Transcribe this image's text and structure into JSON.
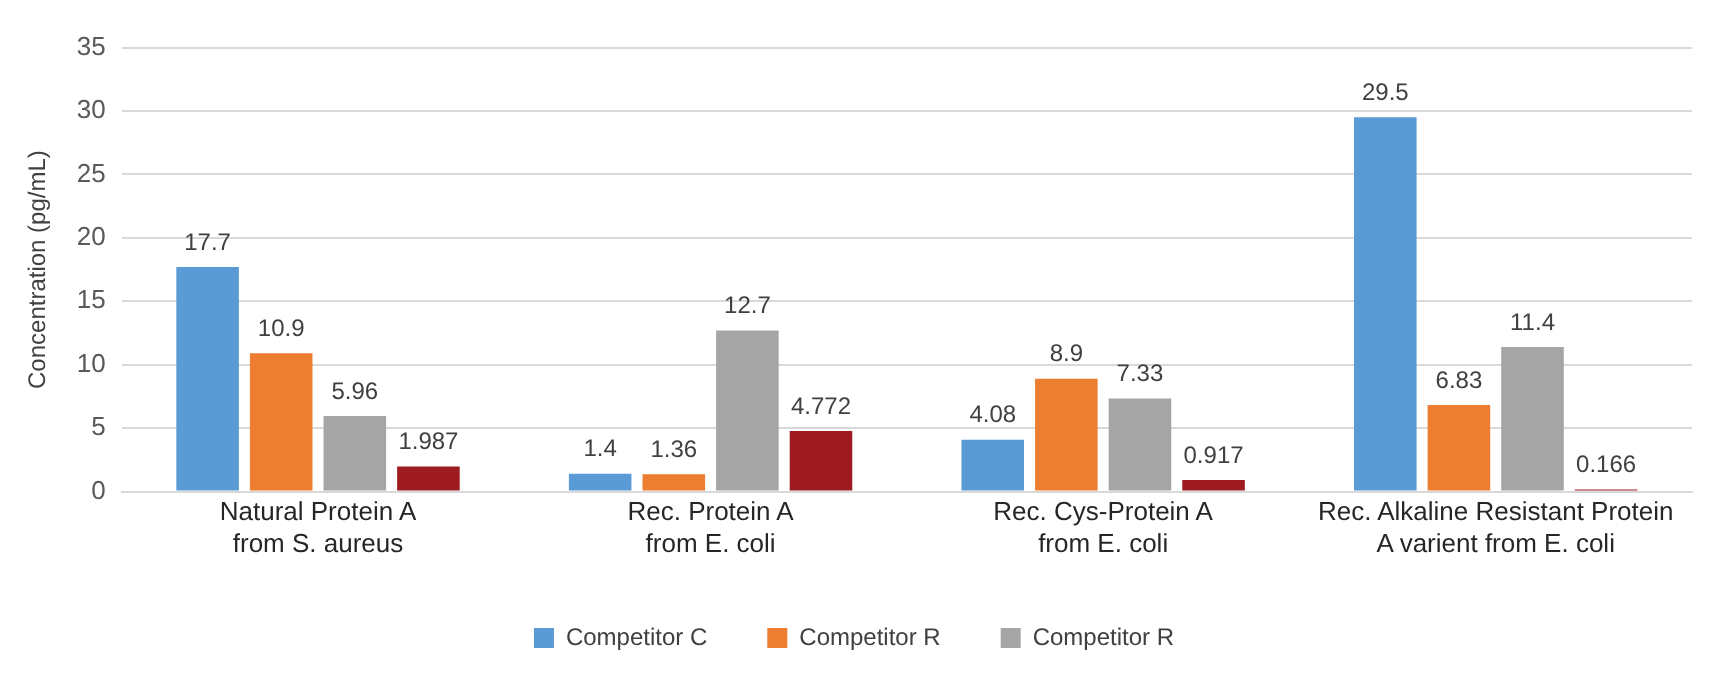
{
  "chart_data": {
    "type": "bar",
    "ylabel": "Concentration (pg/mL)",
    "categories": [
      "Natural Protein A\nfrom S. aureus",
      "Rec. Protein A\nfrom E. coli",
      "Rec. Cys-Protein A\nfrom E. coli",
      "Rec. Alkaline Resistant Protein\nA varient from E. coli"
    ],
    "series": [
      {
        "name": "Competitor C",
        "color": "#5b9bd5",
        "values": [
          17.7,
          1.4,
          4.08,
          29.5
        ]
      },
      {
        "name": "Competitor R",
        "color": "#ed7d31",
        "values": [
          10.9,
          1.36,
          8.9,
          6.83
        ]
      },
      {
        "name": "Competitor R",
        "color": "#a5a5a5",
        "values": [
          5.96,
          12.7,
          7.33,
          11.4
        ]
      },
      {
        "color": "#9e1b20",
        "values": [
          1.987,
          4.772,
          0.917,
          0.166
        ]
      }
    ],
    "ylim": [
      0,
      35
    ],
    "yticks": [
      0,
      5,
      10,
      15,
      20,
      25,
      30,
      35
    ],
    "grid": "y",
    "legend": "bottom",
    "data_labels": true
  }
}
